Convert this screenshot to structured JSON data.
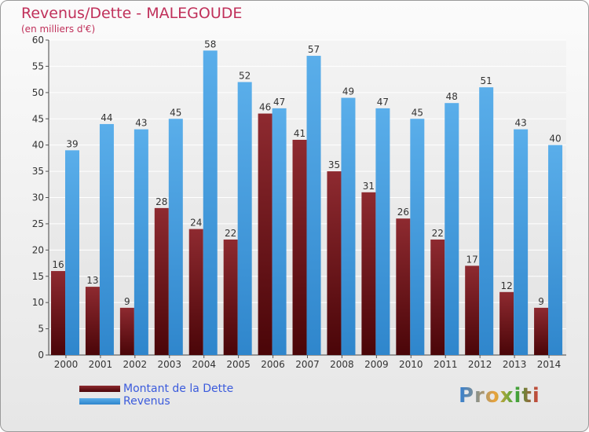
{
  "title": "Revenus/Dette - MALEGOUDE",
  "subtitle": "(en milliers d'€)",
  "colors": {
    "dette": "#6e1418",
    "revenus": "#3b9be0",
    "axis_text": "#333333",
    "title": "#c0305a"
  },
  "legend": {
    "dette_label": "Montant de la Dette",
    "revenus_label": "Revenus"
  },
  "logo": {
    "text": "Proxiti"
  },
  "chart_data": {
    "type": "bar",
    "title": "Revenus/Dette - MALEGOUDE",
    "ylabel": "(en milliers d'€)",
    "xlabel": "",
    "ylim": [
      0,
      60
    ],
    "yticks": [
      0,
      5,
      10,
      15,
      20,
      25,
      30,
      35,
      40,
      45,
      50,
      55,
      60
    ],
    "grid": true,
    "categories": [
      "2000",
      "2001",
      "2002",
      "2003",
      "2004",
      "2005",
      "2006",
      "2007",
      "2008",
      "2009",
      "2010",
      "2011",
      "2012",
      "2013",
      "2014"
    ],
    "series": [
      {
        "name": "Montant de la Dette",
        "values": [
          16,
          13,
          9,
          28,
          24,
          22,
          46,
          41,
          35,
          31,
          26,
          22,
          17,
          12,
          9
        ]
      },
      {
        "name": "Revenus",
        "values": [
          39,
          44,
          43,
          45,
          58,
          52,
          47,
          57,
          49,
          47,
          45,
          48,
          51,
          43,
          40
        ]
      }
    ]
  }
}
